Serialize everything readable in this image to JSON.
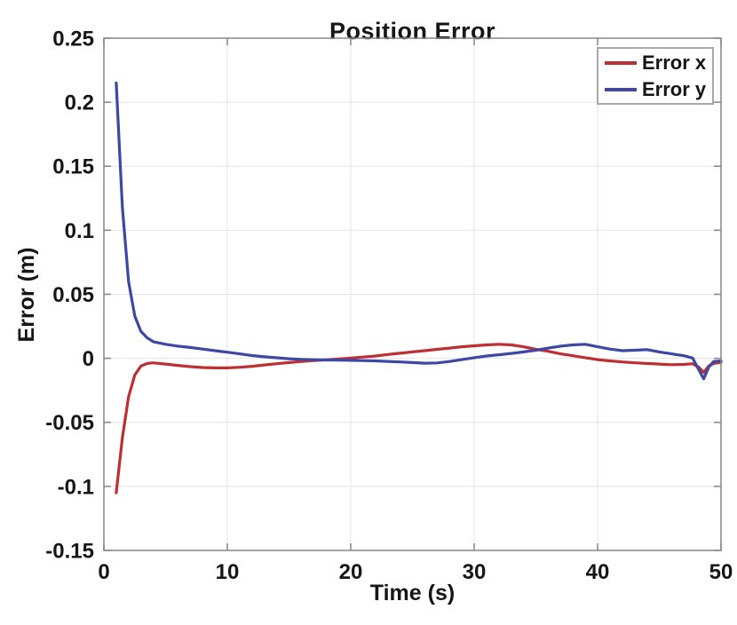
{
  "figure": {
    "background": "#ffffff"
  },
  "style": {
    "axis_color": "#858585",
    "grid_color": "#e4e4e4",
    "text_color": "#161616",
    "legend_border_color": "#a9a9a9"
  },
  "chart_data": {
    "type": "line",
    "title": "Position Error",
    "xlabel": "Time (s)",
    "ylabel": "Error (m)",
    "xlim": [
      0,
      50
    ],
    "ylim": [
      -0.15,
      0.25
    ],
    "grid": true,
    "legend_position": "top-right",
    "x_ticks": [
      0,
      10,
      20,
      30,
      40,
      50
    ],
    "x_tick_labels": [
      "0",
      "10",
      "20",
      "30",
      "40",
      "50"
    ],
    "y_ticks": [
      -0.15,
      -0.1,
      -0.05,
      0,
      0.05,
      0.1,
      0.15,
      0.2,
      0.25
    ],
    "y_tick_labels": [
      "-0.15",
      "-0.1",
      "-0.05",
      "0",
      "0.05",
      "0.1",
      "0.15",
      "0.2",
      "0.25"
    ],
    "x": [
      1,
      1.5,
      2,
      2.5,
      3,
      3.5,
      4,
      5,
      6,
      7,
      8,
      9,
      10,
      11,
      12,
      13,
      14,
      15,
      16,
      17,
      18,
      19,
      20,
      21,
      22,
      23,
      24,
      25,
      26,
      27,
      28,
      29,
      30,
      31,
      32,
      33,
      34,
      35,
      36,
      37,
      38,
      39,
      40,
      41,
      42,
      43,
      44,
      45,
      46,
      47,
      47.7,
      48.2,
      48.6,
      49,
      49.4,
      50
    ],
    "series": [
      {
        "name": "Error x",
        "color": "#be2f34",
        "values": [
          -0.105,
          -0.062,
          -0.03,
          -0.013,
          -0.006,
          -0.004,
          -0.0035,
          -0.0045,
          -0.0055,
          -0.0065,
          -0.0072,
          -0.0075,
          -0.0075,
          -0.007,
          -0.0062,
          -0.0052,
          -0.0042,
          -0.0033,
          -0.0025,
          -0.0018,
          -0.0012,
          -0.0005,
          0.0002,
          0.001,
          0.0018,
          0.003,
          0.004,
          0.005,
          0.006,
          0.007,
          0.008,
          0.009,
          0.0098,
          0.0105,
          0.011,
          0.0105,
          0.009,
          0.007,
          0.0055,
          0.0035,
          0.002,
          0.0005,
          -0.001,
          -0.002,
          -0.0028,
          -0.0035,
          -0.004,
          -0.0045,
          -0.005,
          -0.0048,
          -0.0042,
          -0.007,
          -0.011,
          -0.006,
          -0.004,
          -0.003
        ]
      },
      {
        "name": "Error y",
        "color": "#3c48a4",
        "values": [
          0.215,
          0.118,
          0.06,
          0.033,
          0.021,
          0.016,
          0.013,
          0.011,
          0.0095,
          0.0085,
          0.0072,
          0.006,
          0.0048,
          0.0035,
          0.0022,
          0.0012,
          0.0004,
          -0.0003,
          -0.0008,
          -0.0011,
          -0.0013,
          -0.0014,
          -0.0016,
          -0.0018,
          -0.002,
          -0.0024,
          -0.0028,
          -0.0033,
          -0.0038,
          -0.0036,
          -0.0025,
          -0.001,
          0.0005,
          0.0018,
          0.0028,
          0.0038,
          0.005,
          0.0063,
          0.008,
          0.0095,
          0.0105,
          0.011,
          0.009,
          0.0072,
          0.006,
          0.0063,
          0.0068,
          0.005,
          0.0035,
          0.002,
          0.0002,
          -0.009,
          -0.016,
          -0.007,
          -0.0025,
          -0.002
        ]
      }
    ]
  }
}
